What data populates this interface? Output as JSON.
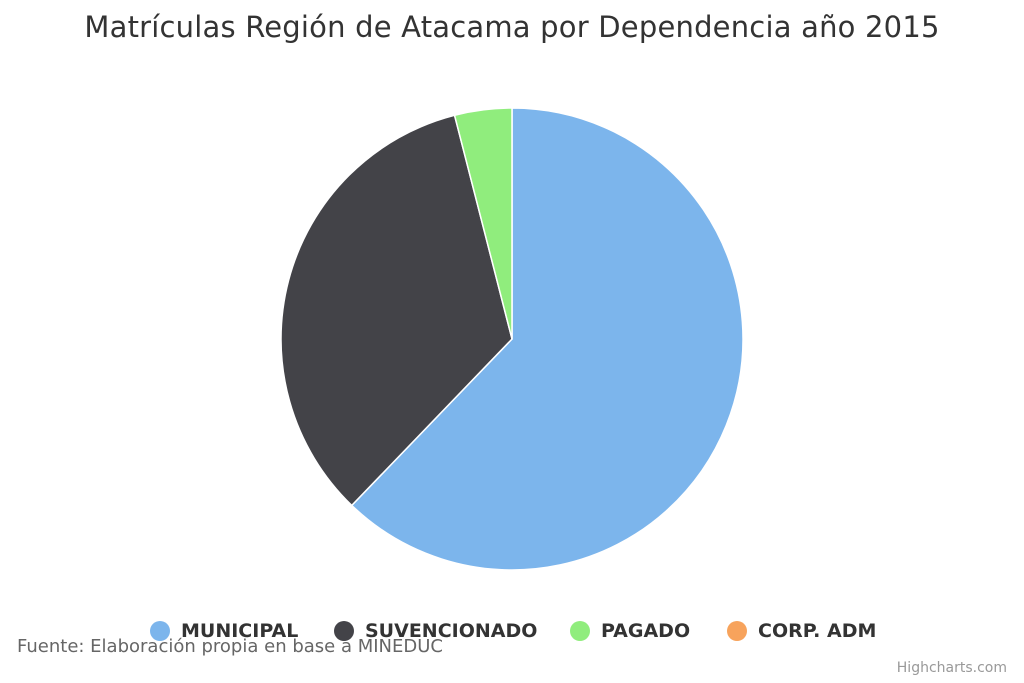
{
  "chart_data": {
    "type": "pie",
    "title": "Matrículas Región de Atacama por Dependencia año 2015",
    "categories": [
      "MUNICIPAL",
      "SUVENCIONADO",
      "PAGADO",
      "CORP. ADM"
    ],
    "values": [
      62.2,
      33.8,
      4.0,
      0.0
    ],
    "colors": [
      "#7cb5ec",
      "#434348",
      "#90ed7d",
      "#f7a35c"
    ],
    "legend_position": "bottom"
  },
  "caption": "Fuente: Elaboración propia en base a MINEDUC",
  "credits": "Highcharts.com"
}
